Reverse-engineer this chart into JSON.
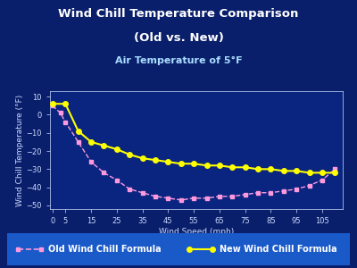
{
  "title1": "Wind Chill Temperature Comparison",
  "title2": "(Old vs. New)",
  "subtitle": "Air Temperature of 5°F",
  "xlabel": "Wind Speed (mph)",
  "ylabel": "Wind Chill Temperature (°F)",
  "bg_color": "#0a1f6b",
  "plot_bg_color": "#0a2580",
  "text_color": "#ffffff",
  "subtitle_color": "#aaddff",
  "legend_bg_color": "#1a5ac8",
  "tick_color": "#ccddff",
  "xlim": [
    -1,
    113
  ],
  "ylim": [
    -52,
    13
  ],
  "xticks": [
    0,
    5,
    15,
    25,
    35,
    45,
    55,
    65,
    75,
    85,
    95,
    105
  ],
  "yticks": [
    -50,
    -40,
    -30,
    -20,
    -10,
    0,
    10
  ],
  "old_x": [
    0,
    3,
    5,
    10,
    15,
    20,
    25,
    30,
    35,
    40,
    45,
    50,
    55,
    60,
    65,
    70,
    75,
    80,
    85,
    90,
    95,
    100,
    105,
    110
  ],
  "old_y": [
    5,
    1,
    -4,
    -15,
    -26,
    -32,
    -36,
    -41,
    -43,
    -45,
    -46,
    -47,
    -46,
    -46,
    -45,
    -45,
    -44,
    -43,
    -43,
    -42,
    -41,
    -39,
    -36,
    -30
  ],
  "new_x": [
    0,
    5,
    10,
    15,
    20,
    25,
    30,
    35,
    40,
    45,
    50,
    55,
    60,
    65,
    70,
    75,
    80,
    85,
    90,
    95,
    100,
    105,
    110
  ],
  "new_y": [
    6,
    6,
    -9,
    -15,
    -17,
    -19,
    -22,
    -24,
    -25,
    -26,
    -27,
    -27,
    -28,
    -28,
    -29,
    -29,
    -30,
    -30,
    -31,
    -31,
    -32,
    -32,
    -32
  ],
  "old_color": "#ff99dd",
  "new_color": "#ffff00",
  "old_label": "Old Wind Chill Formula",
  "new_label": "New Wind Chill Formula",
  "title_fontsize": 9.5,
  "subtitle_fontsize": 8,
  "axis_label_fontsize": 6.5,
  "tick_fontsize": 6,
  "legend_fontsize": 7
}
